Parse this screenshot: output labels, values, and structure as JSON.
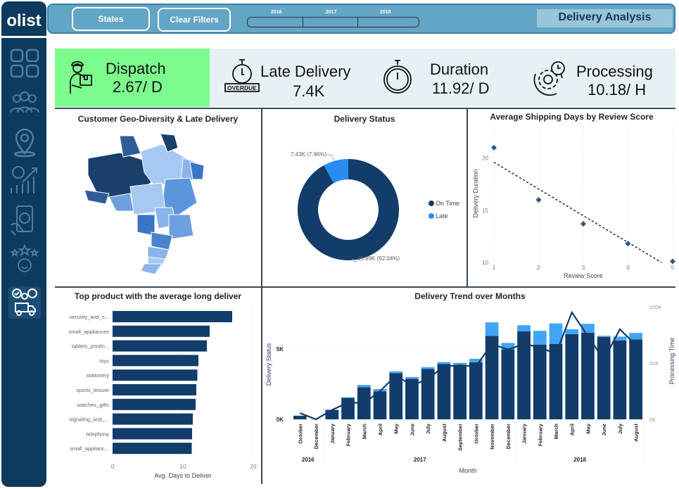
{
  "sidebar": {
    "logo": "olist",
    "items": [
      "dashboard-icon",
      "customers-icon",
      "location-icon",
      "revenue-icon",
      "payment-icon",
      "reviews-icon",
      "delivery-icon"
    ],
    "active": "delivery-icon"
  },
  "header": {
    "states_button": "States",
    "clear_filters_button": "Clear Filters",
    "years": [
      "2016",
      "2017",
      "2018"
    ],
    "title": "Delivery Analysis"
  },
  "kpis": [
    {
      "label": "Dispatch",
      "value": "2.67/ D",
      "icon": "delivery-man-icon",
      "color": "#7dfc8e"
    },
    {
      "label": "Late Delivery",
      "value": "7.4K",
      "icon": "overdue-stopwatch-icon",
      "icon_text": "OVERDUE",
      "color": "#e7f1f5"
    },
    {
      "label": "Duration",
      "value": "11.92/ D",
      "icon": "stopwatch-icon",
      "color": "#e7f1f5"
    },
    {
      "label": "Processing",
      "value": "10.18/ H",
      "icon": "gear-clock-icon",
      "color": "#e7f1f5"
    }
  ],
  "colors": {
    "navy": "#123c69",
    "light": "#41a5f5",
    "late": "#2a8cf0",
    "sidebar": "#0e3a5e",
    "header": "#62a5c4"
  },
  "chart_data": [
    {
      "type": "map",
      "title": "Customer Geo-Diversity & Late Delivery"
    },
    {
      "type": "pie",
      "title": "Delivery Status",
      "categories": [
        "On Time",
        "Late"
      ],
      "values": [
        85890,
        7430
      ],
      "labels": [
        "85.89K (92.04%)",
        "7.43K (7.96%)"
      ],
      "legend": [
        "On Time",
        "Late"
      ],
      "legend_position": "right"
    },
    {
      "type": "scatter",
      "title": "Average Shipping Days by Review Score",
      "xlabel": "Review Score",
      "ylabel": "Delivery Duration",
      "x": [
        1,
        2,
        3,
        4,
        5
      ],
      "y": [
        21,
        16,
        13.7,
        11.8,
        10.1
      ],
      "xlim": [
        1,
        5
      ],
      "ylim": [
        10,
        22
      ],
      "yticks": [
        "10",
        "15",
        "20"
      ],
      "xticks": [
        "1",
        "2",
        "3",
        "4",
        "5"
      ],
      "trendline": {
        "x": [
          1,
          4.75
        ],
        "y": [
          19.6,
          10
        ]
      }
    },
    {
      "type": "bar",
      "orientation": "horizontal",
      "title": "Top product with the average long deliver",
      "xlabel": "Avg. Days to Deliver",
      "categories": [
        "security_and_s...",
        "small_appliances",
        "tablets_printin...",
        "toys",
        "stationery",
        "sports_leisure",
        "watches_gifts",
        "signaling_and_...",
        "telephony",
        "small_applianc..."
      ],
      "values": [
        17,
        13.8,
        13.4,
        12.2,
        12.05,
        11.9,
        11.8,
        11.4,
        11.3,
        11.25
      ],
      "xlim": [
        0,
        20
      ],
      "xticks": [
        "0",
        "10",
        "20"
      ]
    },
    {
      "type": "bar",
      "stacked": true,
      "title": "Delivery Trend over Months",
      "xlabel": "Month",
      "ylabel": "Delivery Status",
      "y2label": "Processing Time",
      "categories": [
        "October",
        "December",
        "January",
        "February",
        "March",
        "April",
        "May",
        "June",
        "July",
        "August",
        "September",
        "October",
        "November",
        "December",
        "January",
        "February",
        "March",
        "April",
        "May",
        "June",
        "July",
        "August"
      ],
      "years": [
        {
          "label": "2016",
          "span": 2
        },
        {
          "label": "2017",
          "span": 12
        },
        {
          "label": "2018",
          "span": 8
        }
      ],
      "series": [
        {
          "name": "On Time",
          "values": [
            250,
            5,
            660,
            1520,
            2285,
            1990,
            3280,
            2880,
            3575,
            3925,
            3810,
            4055,
            5930,
            4970,
            6260,
            5315,
            5365,
            6060,
            6160,
            5860,
            5610,
            5680
          ]
        },
        {
          "name": "Late",
          "values": [
            15,
            0,
            40,
            50,
            165,
            160,
            130,
            130,
            135,
            145,
            200,
            245,
            960,
            460,
            430,
            975,
            1455,
            350,
            630,
            80,
            270,
            460
          ]
        },
        {
          "name": "Processing Time",
          "axis": "right",
          "values": [
            5600,
            0,
            8300,
            15000,
            14500,
            25000,
            39000,
            30000,
            36000,
            47000,
            48000,
            47000,
            67000,
            62000,
            67000,
            64000,
            58000,
            95000,
            74000,
            53000,
            80000,
            66000
          ]
        }
      ],
      "ylim": [
        0,
        8000
      ],
      "yticks": [
        "0K",
        "5K"
      ],
      "y2lim": [
        0,
        100000
      ],
      "y2ticks": [
        "0K",
        "50K",
        "100K"
      ]
    }
  ]
}
